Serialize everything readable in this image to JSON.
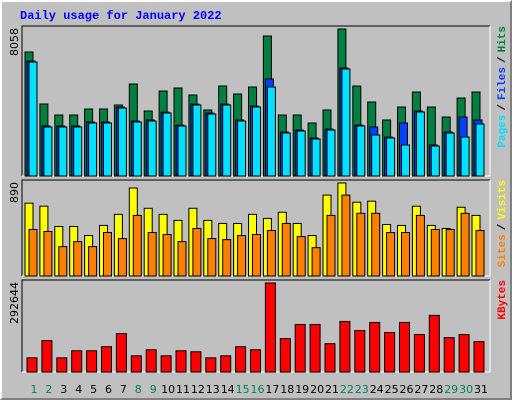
{
  "title": "Daily usage for January 2022",
  "legend_separator": "/",
  "chart_data": [
    {
      "type": "bar",
      "ylim": [
        0,
        8058
      ],
      "yticks": [
        8058
      ],
      "series": [
        {
          "name": "Hits",
          "color": "#008040",
          "values": [
            6797,
            3947,
            3344,
            3344,
            3673,
            3673,
            3892,
            5043,
            3563,
            4659,
            4824,
            4440,
            3618,
            4933,
            4495,
            4879,
            7674,
            3344,
            3344,
            2905,
            3618,
            8058,
            4933,
            4056,
            3070,
            3782,
            4604,
            3782,
            3234,
            4276,
            4604
          ]
        },
        {
          "name": "Files",
          "color": "#0040FF",
          "values": [
            6300,
            2740,
            2740,
            2740,
            2960,
            2960,
            3780,
            3010,
            3070,
            3500,
            2790,
            3940,
            3450,
            3940,
            3070,
            3830,
            5317,
            2410,
            2520,
            2080,
            2570,
            5920,
            2790,
            2686,
            2130,
            2905,
            3560,
            1700,
            2410,
            3234,
            3070
          ]
        },
        {
          "name": "Pages",
          "color": "#00E0FF",
          "values": [
            6249,
            2686,
            2686,
            2686,
            2905,
            2905,
            3728,
            2960,
            3015,
            3453,
            2741,
            3892,
            3399,
            3892,
            3015,
            3782,
            4879,
            2357,
            2467,
            2028,
            2522,
            5866,
            2741,
            2248,
            2083,
            1699,
            3508,
            1645,
            2357,
            2138,
            2851
          ]
        }
      ]
    },
    {
      "type": "bar",
      "ylim": [
        0,
        890
      ],
      "yticks": [
        890
      ],
      "series": [
        {
          "name": "Visits",
          "color": "#FFFF00",
          "values": [
            697,
            668,
            474,
            474,
            387,
            484,
            590,
            842,
            648,
            590,
            532,
            648,
            532,
            503,
            503,
            590,
            551,
            610,
            503,
            387,
            774,
            890,
            706,
            716,
            493,
            484,
            668,
            484,
            455,
            658,
            580
          ]
        },
        {
          "name": "Sites",
          "color": "#FF8000",
          "values": [
            445,
            426,
            281,
            329,
            281,
            416,
            358,
            580,
            416,
            397,
            329,
            455,
            358,
            348,
            387,
            397,
            435,
            503,
            377,
            271,
            580,
            774,
            600,
            600,
            416,
            416,
            580,
            445,
            445,
            600,
            435
          ]
        }
      ]
    },
    {
      "type": "bar",
      "ylim": [
        0,
        292644
      ],
      "yticks": [
        292644
      ],
      "categories": [
        1,
        2,
        3,
        4,
        5,
        6,
        7,
        8,
        9,
        10,
        11,
        12,
        13,
        14,
        15,
        16,
        17,
        18,
        19,
        20,
        21,
        22,
        23,
        24,
        25,
        26,
        27,
        28,
        29,
        30,
        31
      ],
      "category_colors": [
        "#00805C",
        "#00805C",
        "#000000",
        "#000000",
        "#000000",
        "#000000",
        "#000000",
        "#00805C",
        "#00805C",
        "#000000",
        "#000000",
        "#000000",
        "#000000",
        "#000000",
        "#00805C",
        "#00805C",
        "#000000",
        "#000000",
        "#000000",
        "#000000",
        "#000000",
        "#00805C",
        "#00805C",
        "#000000",
        "#000000",
        "#000000",
        "#000000",
        "#000000",
        "#00805C",
        "#00805C",
        "#000000"
      ],
      "series": [
        {
          "name": "KBytes",
          "color": "#FF0000",
          "values": [
            46557,
            103090,
            46557,
            69836,
            69836,
            83138,
            126370,
            53209,
            73161,
            53209,
            69836,
            66510,
            46557,
            53209,
            83138,
            73161,
            292644,
            109742,
            156299,
            156299,
            93115,
            166278,
            136347,
            162950,
            129695,
            162950,
            123046,
            186228,
            113068,
            123046,
            99765
          ]
        }
      ]
    }
  ]
}
